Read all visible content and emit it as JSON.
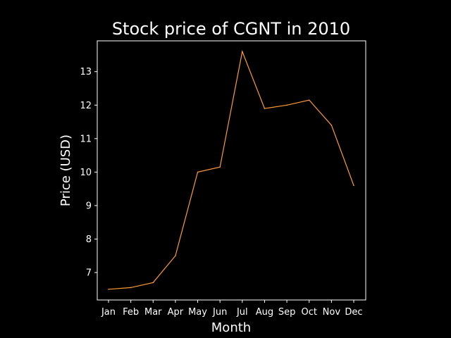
{
  "chart_data": {
    "type": "line",
    "title": "Stock price of CGNT in 2010",
    "xlabel": "Month",
    "ylabel": "Price (USD)",
    "categories": [
      "Jan",
      "Feb",
      "Mar",
      "Apr",
      "May",
      "Jun",
      "Jul",
      "Aug",
      "Sep",
      "Oct",
      "Nov",
      "Dec"
    ],
    "series": [
      {
        "values": [
          6.5,
          6.55,
          6.7,
          7.5,
          10.0,
          10.15,
          13.6,
          11.9,
          12.0,
          12.15,
          11.4,
          9.6
        ],
        "color": "#ff9933"
      }
    ],
    "ylim": [
      6.18,
      13.92
    ],
    "yticks": [
      7,
      8,
      9,
      10,
      11,
      12,
      13
    ],
    "background": "#000000",
    "foreground": "#ffffff",
    "grid": false,
    "legend": "none"
  }
}
